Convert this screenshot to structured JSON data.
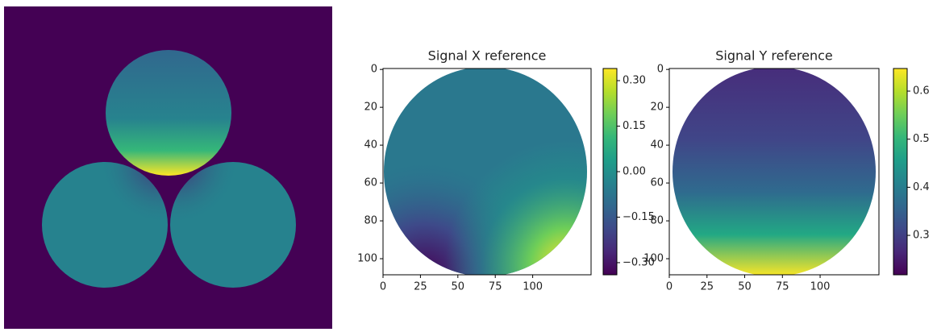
{
  "chart_data": [
    {
      "type": "heatmap",
      "title": "Signal X reference",
      "xlim": [
        0,
        139
      ],
      "ylim": [
        108.5,
        -0.5
      ],
      "xticks": [
        0,
        25,
        50,
        75,
        100
      ],
      "yticks": [
        0,
        20,
        40,
        60,
        80,
        100
      ],
      "clim": [
        -0.34,
        0.34
      ],
      "cticks": [
        {
          "value": 0.3,
          "label": "0.30"
        },
        {
          "value": 0.15,
          "label": "0.15"
        },
        {
          "value": 0,
          "label": "0.00"
        },
        {
          "value": -0.15,
          "label": "−0.15"
        },
        {
          "value": -0.3,
          "label": "−0.30"
        }
      ],
      "colormap": [
        "#440154",
        "#482878",
        "#3e4989",
        "#31688e",
        "#26828e",
        "#1f9e89",
        "#35b779",
        "#6ece58",
        "#b5de2b",
        "#fde725"
      ]
    },
    {
      "type": "heatmap",
      "title": "Signal Y reference",
      "xlim": [
        0,
        139
      ],
      "ylim": [
        108.5,
        -0.5
      ],
      "xticks": [
        0,
        25,
        50,
        75,
        100
      ],
      "yticks": [
        0,
        20,
        40,
        60,
        80,
        100
      ],
      "clim": [
        0.218,
        0.647
      ],
      "cticks": [
        0.3,
        0.4,
        0.5,
        0.6
      ],
      "colormap": [
        "#440154",
        "#482878",
        "#3e4989",
        "#31688e",
        "#26828e",
        "#1f9e89",
        "#35b779",
        "#6ece58",
        "#b5de2b",
        "#fde725"
      ]
    }
  ]
}
